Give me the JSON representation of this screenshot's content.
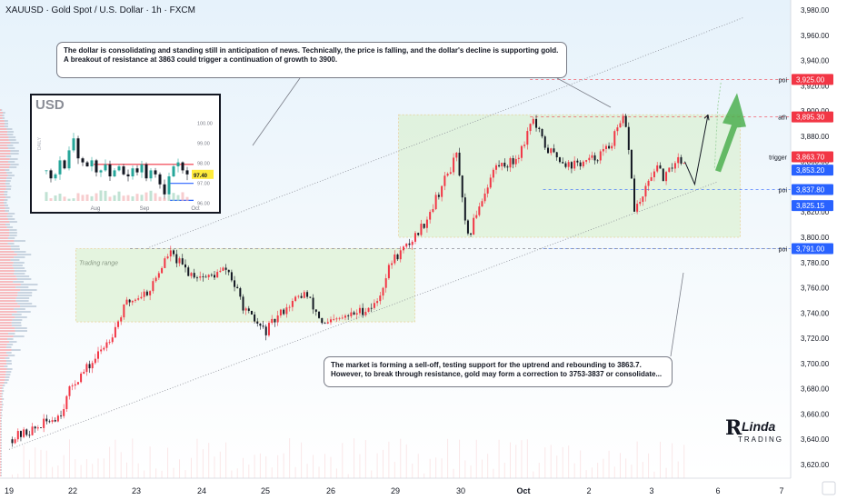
{
  "header": {
    "symbol": "XAUUSD · Gold Spot / U.S. Dollar · 1h · FXCM"
  },
  "colors": {
    "up": "#26a69a",
    "down": "#131722",
    "ema_up": "#ef5350",
    "box_fill": "#d7f0c8",
    "price_red": "#f23645",
    "price_blue": "#2962ff",
    "arrow_green": "#4caf50"
  },
  "annotations": {
    "callout_top": [
      "The dollar is consolidating and standing still in anticipation of news. Technically, the price is falling, and the dollar's decline is supporting gold.",
      "A breakout of resistance at 3863 could trigger a continuation of growth to 3900."
    ],
    "callout_bottom": [
      "The market is forming a sell-off, testing support for the uptrend and rebounding to 3863.7.",
      "However, to break through resistance, gold may form a correction to 3753-3837 or consolidate..."
    ],
    "trading_range": "Trading range"
  },
  "logo": {
    "mark": "R",
    "name": "Linda",
    "sub": "TRADING"
  },
  "inset": {
    "title": "USD",
    "side_label": "DAILY",
    "y_ticks": [
      "100.00",
      "99.00",
      "98.00",
      "97.00",
      "96.00"
    ],
    "x_ticks": [
      "Aug",
      "Sep",
      "Oct"
    ],
    "last_price": "97.40"
  },
  "chart_data": {
    "type": "candlestick",
    "title": "XAUUSD · Gold Spot / U.S. Dollar · 1h · FXCM",
    "xlabel": "",
    "ylabel": "",
    "ylim": [
      3611,
      3982
    ],
    "y_ticks": [
      3620,
      3640,
      3660,
      3680,
      3700,
      3720,
      3740,
      3760,
      3780,
      3800,
      3820,
      3840,
      3860,
      3880,
      3900,
      3920,
      3940,
      3960,
      3980
    ],
    "x_ticks": [
      "19",
      "22",
      "23",
      "24",
      "25",
      "26",
      "29",
      "30",
      "Oct",
      "2",
      "3",
      "6",
      "7"
    ],
    "grid": false,
    "price_path": [
      {
        "t": 0.0,
        "p": 3640
      },
      {
        "t": 0.4,
        "p": 3648
      },
      {
        "t": 0.8,
        "p": 3660
      },
      {
        "t": 1.0,
        "p": 3684
      },
      {
        "t": 1.3,
        "p": 3700
      },
      {
        "t": 1.6,
        "p": 3722
      },
      {
        "t": 1.85,
        "p": 3748
      },
      {
        "t": 2.2,
        "p": 3758
      },
      {
        "t": 2.5,
        "p": 3788
      },
      {
        "t": 2.8,
        "p": 3772
      },
      {
        "t": 3.1,
        "p": 3768
      },
      {
        "t": 3.4,
        "p": 3775
      },
      {
        "t": 3.7,
        "p": 3740
      },
      {
        "t": 4.0,
        "p": 3725
      },
      {
        "t": 4.3,
        "p": 3744
      },
      {
        "t": 4.6,
        "p": 3756
      },
      {
        "t": 4.9,
        "p": 3730
      },
      {
        "t": 5.3,
        "p": 3738
      },
      {
        "t": 5.7,
        "p": 3747
      },
      {
        "t": 5.95,
        "p": 3782
      },
      {
        "t": 6.2,
        "p": 3794
      },
      {
        "t": 6.45,
        "p": 3812
      },
      {
        "t": 6.75,
        "p": 3845
      },
      {
        "t": 6.95,
        "p": 3866
      },
      {
        "t": 7.05,
        "p": 3815
      },
      {
        "t": 7.12,
        "p": 3798
      },
      {
        "t": 7.25,
        "p": 3820
      },
      {
        "t": 7.55,
        "p": 3856
      },
      {
        "t": 7.85,
        "p": 3860
      },
      {
        "t": 8.0,
        "p": 3873
      },
      {
        "t": 8.12,
        "p": 3895
      },
      {
        "t": 8.35,
        "p": 3870
      },
      {
        "t": 8.7,
        "p": 3857
      },
      {
        "t": 9.0,
        "p": 3860
      },
      {
        "t": 9.3,
        "p": 3870
      },
      {
        "t": 9.55,
        "p": 3893
      },
      {
        "t": 9.62,
        "p": 3880
      },
      {
        "t": 9.72,
        "p": 3822
      },
      {
        "t": 9.85,
        "p": 3830
      },
      {
        "t": 10.05,
        "p": 3856
      },
      {
        "t": 10.2,
        "p": 3846
      },
      {
        "t": 10.38,
        "p": 3863
      },
      {
        "t": 10.5,
        "p": 3860
      }
    ],
    "price_labels": [
      {
        "label": "3,925.00",
        "value": 3925.0,
        "kind": "red",
        "tag": "poi"
      },
      {
        "label": "3,895.30",
        "value": 3895.3,
        "kind": "red",
        "tag": "ath"
      },
      {
        "label": "3,863.70",
        "value": 3863.7,
        "kind": "red",
        "tag": "trigger"
      },
      {
        "label": "3,853.20",
        "value": 3853.2,
        "kind": "blue",
        "tag": ""
      },
      {
        "label": "3,837.80",
        "value": 3837.8,
        "kind": "blue",
        "tag": "poi"
      },
      {
        "label": "3,825.15",
        "value": 3825.15,
        "kind": "blue",
        "tag": ""
      },
      {
        "label": "3,791.00",
        "value": 3791.0,
        "kind": "blue",
        "tag": "poi"
      }
    ],
    "levels": [
      {
        "value": 3925.0,
        "style": "dashed",
        "color": "#f23645"
      },
      {
        "value": 3895.3,
        "style": "dashed",
        "color": "#f23645"
      },
      {
        "value": 3837.8,
        "style": "dashed",
        "color": "#2962ff"
      },
      {
        "value": 3791.0,
        "style": "dashed",
        "color": "#2962ff"
      }
    ],
    "channel": {
      "lower": [
        {
          "t": 0.0,
          "p": 3632
        },
        {
          "t": 11.0,
          "p": 3844
        }
      ],
      "upper": [
        {
          "t": 2.2,
          "p": 3792
        },
        {
          "t": 11.4,
          "p": 3974
        }
      ]
    },
    "zones": [
      {
        "t0": 1.05,
        "t1": 6.3,
        "p_low": 3733,
        "p_high": 3791
      },
      {
        "t0": 6.05,
        "t1": 11.35,
        "p_low": 3800,
        "p_high": 3897
      }
    ]
  }
}
